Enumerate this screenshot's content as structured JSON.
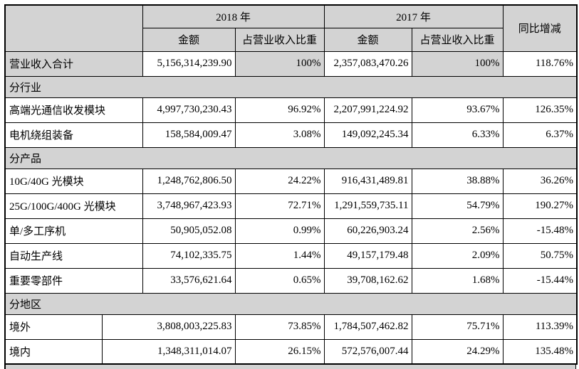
{
  "table": {
    "header": {
      "year_2018": "2018 年",
      "year_2017": "2017 年",
      "yoy": "同比增减",
      "amount": "金额",
      "share": "占营业收入比重"
    },
    "rows": [
      {
        "type": "data",
        "label": "营业收入合计",
        "amount_2018": "5,156,314,239.90",
        "share_2018": "100%",
        "amount_2017": "2,357,083,470.26",
        "share_2017": "100%",
        "yoy": "118.76%",
        "shaded": true
      },
      {
        "type": "section",
        "label": "分行业"
      },
      {
        "type": "data",
        "label": "高端光通信收发模块",
        "amount_2018": "4,997,730,230.43",
        "share_2018": "96.92%",
        "amount_2017": "2,207,991,224.92",
        "share_2017": "93.67%",
        "yoy": "126.35%"
      },
      {
        "type": "data",
        "label": "电机绕组装备",
        "amount_2018": "158,584,009.47",
        "share_2018": "3.08%",
        "amount_2017": "149,092,245.34",
        "share_2017": "6.33%",
        "yoy": "6.37%"
      },
      {
        "type": "section",
        "label": "分产品"
      },
      {
        "type": "data",
        "label": "10G/40G 光模块",
        "amount_2018": "1,248,762,806.50",
        "share_2018": "24.22%",
        "amount_2017": "916,431,489.81",
        "share_2017": "38.88%",
        "yoy": "36.26%"
      },
      {
        "type": "data",
        "label": "25G/100G/400G 光模块",
        "amount_2018": "3,748,967,423.93",
        "share_2018": "72.71%",
        "amount_2017": "1,291,559,735.11",
        "share_2017": "54.79%",
        "yoy": "190.27%"
      },
      {
        "type": "data",
        "label": "单/多工序机",
        "amount_2018": "50,905,052.08",
        "share_2018": "0.99%",
        "amount_2017": "60,226,903.24",
        "share_2017": "2.56%",
        "yoy": "-15.48%"
      },
      {
        "type": "data",
        "label": "自动生产线",
        "amount_2018": "74,102,335.75",
        "share_2018": "1.44%",
        "amount_2017": "49,157,179.48",
        "share_2017": "2.09%",
        "yoy": "50.75%"
      },
      {
        "type": "data",
        "label": "重要零部件",
        "amount_2018": "33,576,621.64",
        "share_2018": "0.65%",
        "amount_2017": "39,708,162.62",
        "share_2017": "1.68%",
        "yoy": "-15.44%"
      },
      {
        "type": "section",
        "label": "分地区"
      },
      {
        "type": "data",
        "label": "境外",
        "amount_2018": "3,808,003,225.83",
        "share_2018": "73.85%",
        "amount_2017": "1,784,507,462.82",
        "share_2017": "75.71%",
        "yoy": "113.39%",
        "split_label": true
      },
      {
        "type": "data",
        "label": "境内",
        "amount_2018": "1,348,311,014.07",
        "share_2018": "26.15%",
        "amount_2017": "572,576,007.44",
        "share_2017": "24.29%",
        "yoy": "135.48%",
        "split_label": true
      }
    ],
    "colors": {
      "shaded_bg": "#d3d3d3",
      "border": "#000000",
      "cell_bg": "#ffffff",
      "text": "#000000"
    }
  }
}
